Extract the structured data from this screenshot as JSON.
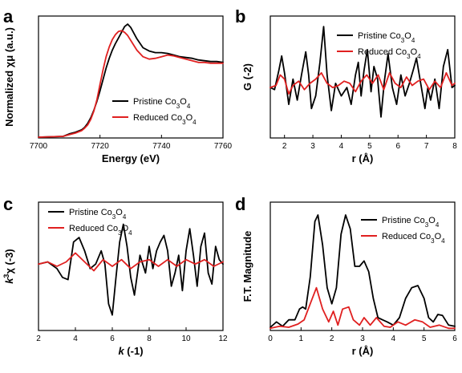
{
  "chart_data": [
    {
      "panel": "a",
      "type": "line",
      "xlabel": "Energy (eV)",
      "ylabel": "Normalized χμ (a.u.)",
      "xlim": [
        7700,
        7760
      ],
      "ylim": [
        0,
        1.5
      ],
      "xticks": [
        "7700",
        "7720",
        "7740",
        "7760"
      ],
      "yticks": [],
      "legend_position": "center-right",
      "series": [
        {
          "name": "Pristine Co3O4",
          "color": "#000000",
          "x": [
            7700,
            7708,
            7710,
            7712,
            7714,
            7715,
            7716,
            7717,
            7718,
            7719,
            7720,
            7721,
            7722,
            7723,
            7724,
            7725,
            7726,
            7727,
            7728,
            7729,
            7730,
            7732,
            7734,
            7736,
            7738,
            7740,
            7742,
            7744,
            7746,
            7748,
            7750,
            7752,
            7754,
            7756,
            7758,
            7760
          ],
          "y": [
            0.01,
            0.02,
            0.05,
            0.07,
            0.1,
            0.13,
            0.18,
            0.25,
            0.34,
            0.45,
            0.58,
            0.72,
            0.86,
            0.98,
            1.08,
            1.16,
            1.23,
            1.3,
            1.37,
            1.4,
            1.36,
            1.22,
            1.11,
            1.07,
            1.05,
            1.05,
            1.04,
            1.02,
            1.0,
            0.99,
            0.98,
            0.96,
            0.95,
            0.94,
            0.94,
            0.93
          ]
        },
        {
          "name": "Reduced Co3O4",
          "color": "#e02020",
          "x": [
            7700,
            7708,
            7710,
            7712,
            7714,
            7715,
            7716,
            7717,
            7718,
            7719,
            7720,
            7721,
            7722,
            7723,
            7724,
            7725,
            7726,
            7727,
            7728,
            7729,
            7730,
            7732,
            7734,
            7736,
            7738,
            7740,
            7742,
            7744,
            7746,
            7748,
            7750,
            7752,
            7754,
            7756,
            7758,
            7760
          ],
          "y": [
            0.01,
            0.02,
            0.04,
            0.06,
            0.09,
            0.12,
            0.16,
            0.23,
            0.33,
            0.47,
            0.66,
            0.84,
            1.0,
            1.12,
            1.21,
            1.27,
            1.31,
            1.32,
            1.3,
            1.26,
            1.2,
            1.08,
            1.0,
            0.97,
            0.98,
            1.0,
            1.02,
            1.01,
            0.99,
            0.97,
            0.95,
            0.93,
            0.93,
            0.92,
            0.92,
            0.92
          ]
        }
      ]
    },
    {
      "panel": "b",
      "type": "line",
      "xlabel": "r (Å)",
      "ylabel": "G (-2)",
      "xlim": [
        1.5,
        8
      ],
      "ylim": [
        -1.2,
        1.7
      ],
      "xticks": [
        "2",
        "3",
        "4",
        "5",
        "6",
        "7",
        "8"
      ],
      "yticks": [],
      "legend_position": "top-right",
      "series": [
        {
          "name": "Pristine Co3O4",
          "color": "#000000",
          "x": [
            1.5,
            1.65,
            1.8,
            1.9,
            2.0,
            2.15,
            2.3,
            2.45,
            2.6,
            2.75,
            2.85,
            2.95,
            3.1,
            3.25,
            3.38,
            3.5,
            3.65,
            3.8,
            4.0,
            4.2,
            4.35,
            4.5,
            4.6,
            4.7,
            4.8,
            4.92,
            5.05,
            5.15,
            5.28,
            5.4,
            5.52,
            5.65,
            5.8,
            5.95,
            6.1,
            6.25,
            6.4,
            6.55,
            6.65,
            6.8,
            6.95,
            7.05,
            7.15,
            7.3,
            7.45,
            7.6,
            7.75,
            7.9,
            8.0
          ],
          "y": [
            0.0,
            -0.05,
            0.4,
            0.75,
            0.35,
            -0.4,
            0.2,
            -0.3,
            0.3,
            0.85,
            0.3,
            -0.5,
            -0.2,
            0.6,
            1.45,
            0.3,
            -0.55,
            0.1,
            -0.2,
            0.0,
            -0.4,
            0.3,
            0.6,
            -0.2,
            0.4,
            0.9,
            -0.1,
            0.5,
            0.2,
            -0.7,
            0.15,
            0.8,
            0.0,
            -0.4,
            0.3,
            -0.2,
            0.1,
            0.45,
            0.7,
            0.1,
            -0.5,
            0.0,
            -0.3,
            0.2,
            -0.5,
            0.5,
            0.9,
            0.0,
            0.05
          ]
        },
        {
          "name": "Reduced Co3O4",
          "color": "#e02020",
          "x": [
            1.5,
            1.7,
            1.85,
            2.0,
            2.15,
            2.3,
            2.5,
            2.7,
            2.9,
            3.1,
            3.3,
            3.5,
            3.7,
            3.9,
            4.1,
            4.3,
            4.5,
            4.7,
            4.9,
            5.1,
            5.3,
            5.5,
            5.7,
            5.9,
            6.1,
            6.3,
            6.5,
            6.7,
            6.9,
            7.1,
            7.3,
            7.5,
            7.7,
            7.9,
            8.0
          ],
          "y": [
            0.0,
            0.05,
            0.3,
            0.2,
            -0.15,
            0.05,
            0.15,
            -0.05,
            0.1,
            0.2,
            0.35,
            0.1,
            0.0,
            0.05,
            0.15,
            0.1,
            -0.1,
            0.15,
            0.3,
            0.1,
            0.3,
            -0.05,
            0.35,
            0.1,
            0.0,
            0.25,
            0.05,
            0.15,
            0.2,
            -0.05,
            0.15,
            0.0,
            0.35,
            0.05,
            0.1
          ]
        }
      ]
    },
    {
      "panel": "c",
      "type": "line",
      "xlabel": "k (-1)",
      "ylabel": "k3χ (-3)",
      "xlim": [
        2,
        12
      ],
      "ylim": [
        -1.5,
        1.4
      ],
      "xticks": [
        "2",
        "4",
        "6",
        "8",
        "10",
        "12"
      ],
      "yticks": [],
      "legend_position": "top-right",
      "series": [
        {
          "name": "Pristine Co3O4",
          "color": "#000000",
          "x": [
            2.0,
            2.5,
            3.0,
            3.3,
            3.6,
            3.9,
            4.2,
            4.5,
            4.8,
            5.1,
            5.4,
            5.6,
            5.8,
            6.0,
            6.2,
            6.4,
            6.6,
            6.8,
            7.0,
            7.2,
            7.5,
            7.8,
            8.0,
            8.2,
            8.4,
            8.6,
            8.8,
            9.0,
            9.2,
            9.4,
            9.6,
            9.8,
            10.0,
            10.2,
            10.4,
            10.6,
            10.8,
            11.0,
            11.2,
            11.4,
            11.6,
            11.8,
            12.0
          ],
          "y": [
            0.0,
            0.05,
            -0.1,
            -0.3,
            -0.35,
            0.5,
            0.6,
            0.3,
            -0.1,
            0.0,
            0.3,
            0.0,
            -0.9,
            -1.15,
            -0.3,
            0.5,
            0.9,
            0.4,
            -0.3,
            -0.7,
            0.2,
            -0.2,
            0.4,
            -0.1,
            0.3,
            0.5,
            0.65,
            0.3,
            -0.5,
            -0.2,
            0.2,
            -0.6,
            0.3,
            0.8,
            0.2,
            -0.5,
            0.4,
            0.7,
            -0.2,
            -0.45,
            0.4,
            0.1,
            0.0
          ]
        },
        {
          "name": "Reduced Co3O4",
          "color": "#e02020",
          "x": [
            2.0,
            2.5,
            3.0,
            3.5,
            4.0,
            4.5,
            5.0,
            5.5,
            6.0,
            6.5,
            7.0,
            7.5,
            8.0,
            8.5,
            9.0,
            9.5,
            10.0,
            10.5,
            11.0,
            11.5,
            12.0
          ],
          "y": [
            0.0,
            0.05,
            -0.05,
            0.05,
            0.25,
            0.05,
            -0.15,
            0.1,
            -0.05,
            0.1,
            -0.1,
            0.05,
            0.1,
            -0.05,
            0.1,
            -0.05,
            0.1,
            0.0,
            0.1,
            -0.05,
            0.05
          ]
        }
      ]
    },
    {
      "panel": "d",
      "type": "line",
      "xlabel": "r (Å)",
      "ylabel": "F.T. Magnitude",
      "xlim": [
        0,
        6
      ],
      "ylim": [
        0,
        1.2
      ],
      "xticks": [
        "0",
        "1",
        "2",
        "3",
        "4",
        "5",
        "6"
      ],
      "yticks": [],
      "legend_position": "top-right",
      "series": [
        {
          "name": "Pristine Co3O4",
          "color": "#000000",
          "x": [
            0.0,
            0.2,
            0.4,
            0.6,
            0.8,
            0.95,
            1.05,
            1.15,
            1.3,
            1.45,
            1.55,
            1.7,
            1.85,
            2.0,
            2.15,
            2.3,
            2.45,
            2.6,
            2.75,
            2.9,
            3.05,
            3.2,
            3.35,
            3.5,
            3.65,
            3.8,
            4.0,
            4.2,
            4.4,
            4.6,
            4.8,
            5.0,
            5.15,
            5.3,
            5.45,
            5.6,
            5.8,
            6.0
          ],
          "y": [
            0.03,
            0.08,
            0.04,
            0.1,
            0.1,
            0.2,
            0.22,
            0.2,
            0.5,
            1.02,
            1.08,
            0.8,
            0.4,
            0.25,
            0.4,
            0.9,
            1.08,
            0.95,
            0.6,
            0.6,
            0.65,
            0.55,
            0.3,
            0.12,
            0.1,
            0.08,
            0.05,
            0.12,
            0.3,
            0.4,
            0.42,
            0.3,
            0.12,
            0.08,
            0.15,
            0.14,
            0.05,
            0.04
          ]
        },
        {
          "name": "Reduced Co3O4",
          "color": "#e02020",
          "x": [
            0.0,
            0.3,
            0.6,
            0.9,
            1.1,
            1.3,
            1.5,
            1.7,
            1.9,
            2.05,
            2.2,
            2.35,
            2.55,
            2.7,
            2.9,
            3.05,
            3.25,
            3.45,
            3.7,
            3.9,
            4.15,
            4.4,
            4.7,
            4.95,
            5.2,
            5.5,
            5.8,
            6.0
          ],
          "y": [
            0.02,
            0.04,
            0.03,
            0.06,
            0.1,
            0.25,
            0.4,
            0.2,
            0.08,
            0.18,
            0.05,
            0.2,
            0.22,
            0.1,
            0.05,
            0.12,
            0.05,
            0.12,
            0.04,
            0.03,
            0.08,
            0.05,
            0.1,
            0.08,
            0.03,
            0.05,
            0.02,
            0.02
          ]
        }
      ]
    }
  ]
}
